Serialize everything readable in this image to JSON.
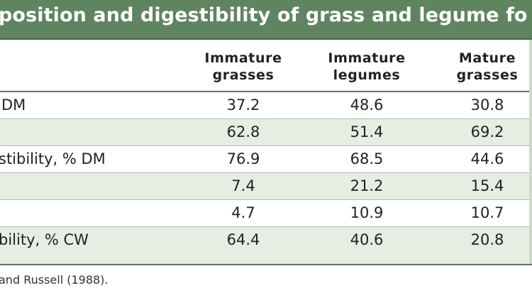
{
  "table": {
    "title": "position and digestibility of grass and legume fo",
    "columns": [
      {
        "line1": "Immature",
        "line2": "grasses"
      },
      {
        "line1": "Immature",
        "line2": "legumes"
      },
      {
        "line1": "Mature",
        "line2": "grasses"
      }
    ],
    "rows": [
      {
        "label": "DM",
        "values": [
          "37.2",
          "48.6",
          "30.8"
        ]
      },
      {
        "label": "",
        "values": [
          "62.8",
          "51.4",
          "69.2"
        ]
      },
      {
        "label": "stibility, % DM",
        "values": [
          "76.9",
          "68.5",
          "44.6"
        ]
      },
      {
        "label": "",
        "values": [
          "7.4",
          "21.2",
          "15.4"
        ]
      },
      {
        "label": "",
        "values": [
          "4.7",
          "10.9",
          "10.7"
        ]
      },
      {
        "label": "bility, % CW",
        "values": [
          "64.4",
          "40.6",
          "20.8"
        ]
      }
    ],
    "footnote": "and Russell (1988)."
  }
}
